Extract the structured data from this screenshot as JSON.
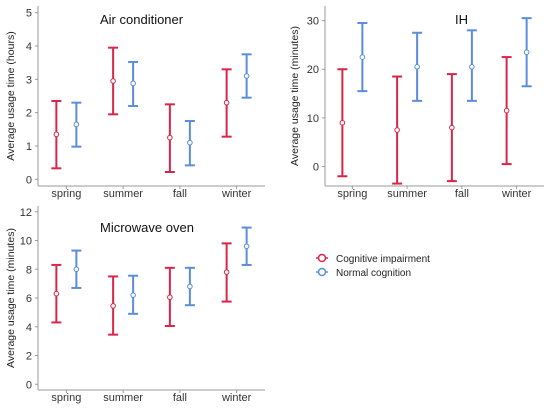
{
  "chart_data": [
    {
      "type": "errorbar",
      "title": "Air conditioner",
      "ylabel": "Average usage time (hours)",
      "xlabel": "",
      "categories": [
        "spring",
        "summer",
        "fall",
        "winter"
      ],
      "ylim": [
        -0.2,
        5.2
      ],
      "yticks": [
        0,
        1,
        2,
        3,
        4,
        5
      ],
      "series": [
        {
          "name": "Cognitive impairment",
          "mean": [
            1.35,
            2.95,
            1.25,
            2.3
          ],
          "low": [
            0.33,
            1.95,
            0.22,
            1.28
          ],
          "high": [
            2.35,
            3.95,
            2.25,
            3.3
          ]
        },
        {
          "name": "Normal cognition",
          "mean": [
            1.65,
            2.88,
            1.1,
            3.1
          ],
          "low": [
            0.98,
            2.2,
            0.42,
            2.45
          ],
          "high": [
            2.3,
            3.52,
            1.75,
            3.75
          ]
        }
      ]
    },
    {
      "type": "errorbar",
      "title": "IH",
      "ylabel": "Average usage time (minutes)",
      "xlabel": "",
      "categories": [
        "spring",
        "summer",
        "fall",
        "winter"
      ],
      "ylim": [
        -4,
        33
      ],
      "yticks": [
        0,
        10,
        20,
        30
      ],
      "series": [
        {
          "name": "Cognitive impairment",
          "mean": [
            9,
            7.5,
            8,
            11.5
          ],
          "low": [
            -2,
            -3.5,
            -3,
            0.5
          ],
          "high": [
            20,
            18.5,
            19,
            22.5
          ]
        },
        {
          "name": "Normal cognition",
          "mean": [
            22.5,
            20.5,
            20.5,
            23.5
          ],
          "low": [
            15.5,
            13.5,
            13.5,
            16.5
          ],
          "high": [
            29.5,
            27.5,
            28,
            30.5
          ]
        }
      ]
    },
    {
      "type": "errorbar",
      "title": "Microwave oven",
      "ylabel": "Average usage time (minutes)",
      "xlabel": "",
      "categories": [
        "spring",
        "summer",
        "fall",
        "winter"
      ],
      "ylim": [
        -0.4,
        12.4
      ],
      "yticks": [
        0,
        2,
        4,
        6,
        8,
        10,
        12
      ],
      "series": [
        {
          "name": "Cognitive impairment",
          "mean": [
            6.3,
            5.45,
            6.05,
            7.8
          ],
          "low": [
            4.3,
            3.45,
            4.05,
            5.75
          ],
          "high": [
            8.3,
            7.5,
            8.1,
            9.8
          ]
        },
        {
          "name": "Normal cognition",
          "mean": [
            8.0,
            6.2,
            6.8,
            9.6
          ],
          "low": [
            6.7,
            4.9,
            5.5,
            8.3
          ],
          "high": [
            9.3,
            7.55,
            8.1,
            10.9
          ]
        }
      ]
    }
  ],
  "legend": {
    "position": "right",
    "items": [
      "Cognitive impairment",
      "Normal cognition"
    ]
  },
  "colors": {
    "cognitive_impairment": "#d7264a",
    "normal_cognition": "#5a8ddc",
    "axis": "#9a9a9a"
  }
}
